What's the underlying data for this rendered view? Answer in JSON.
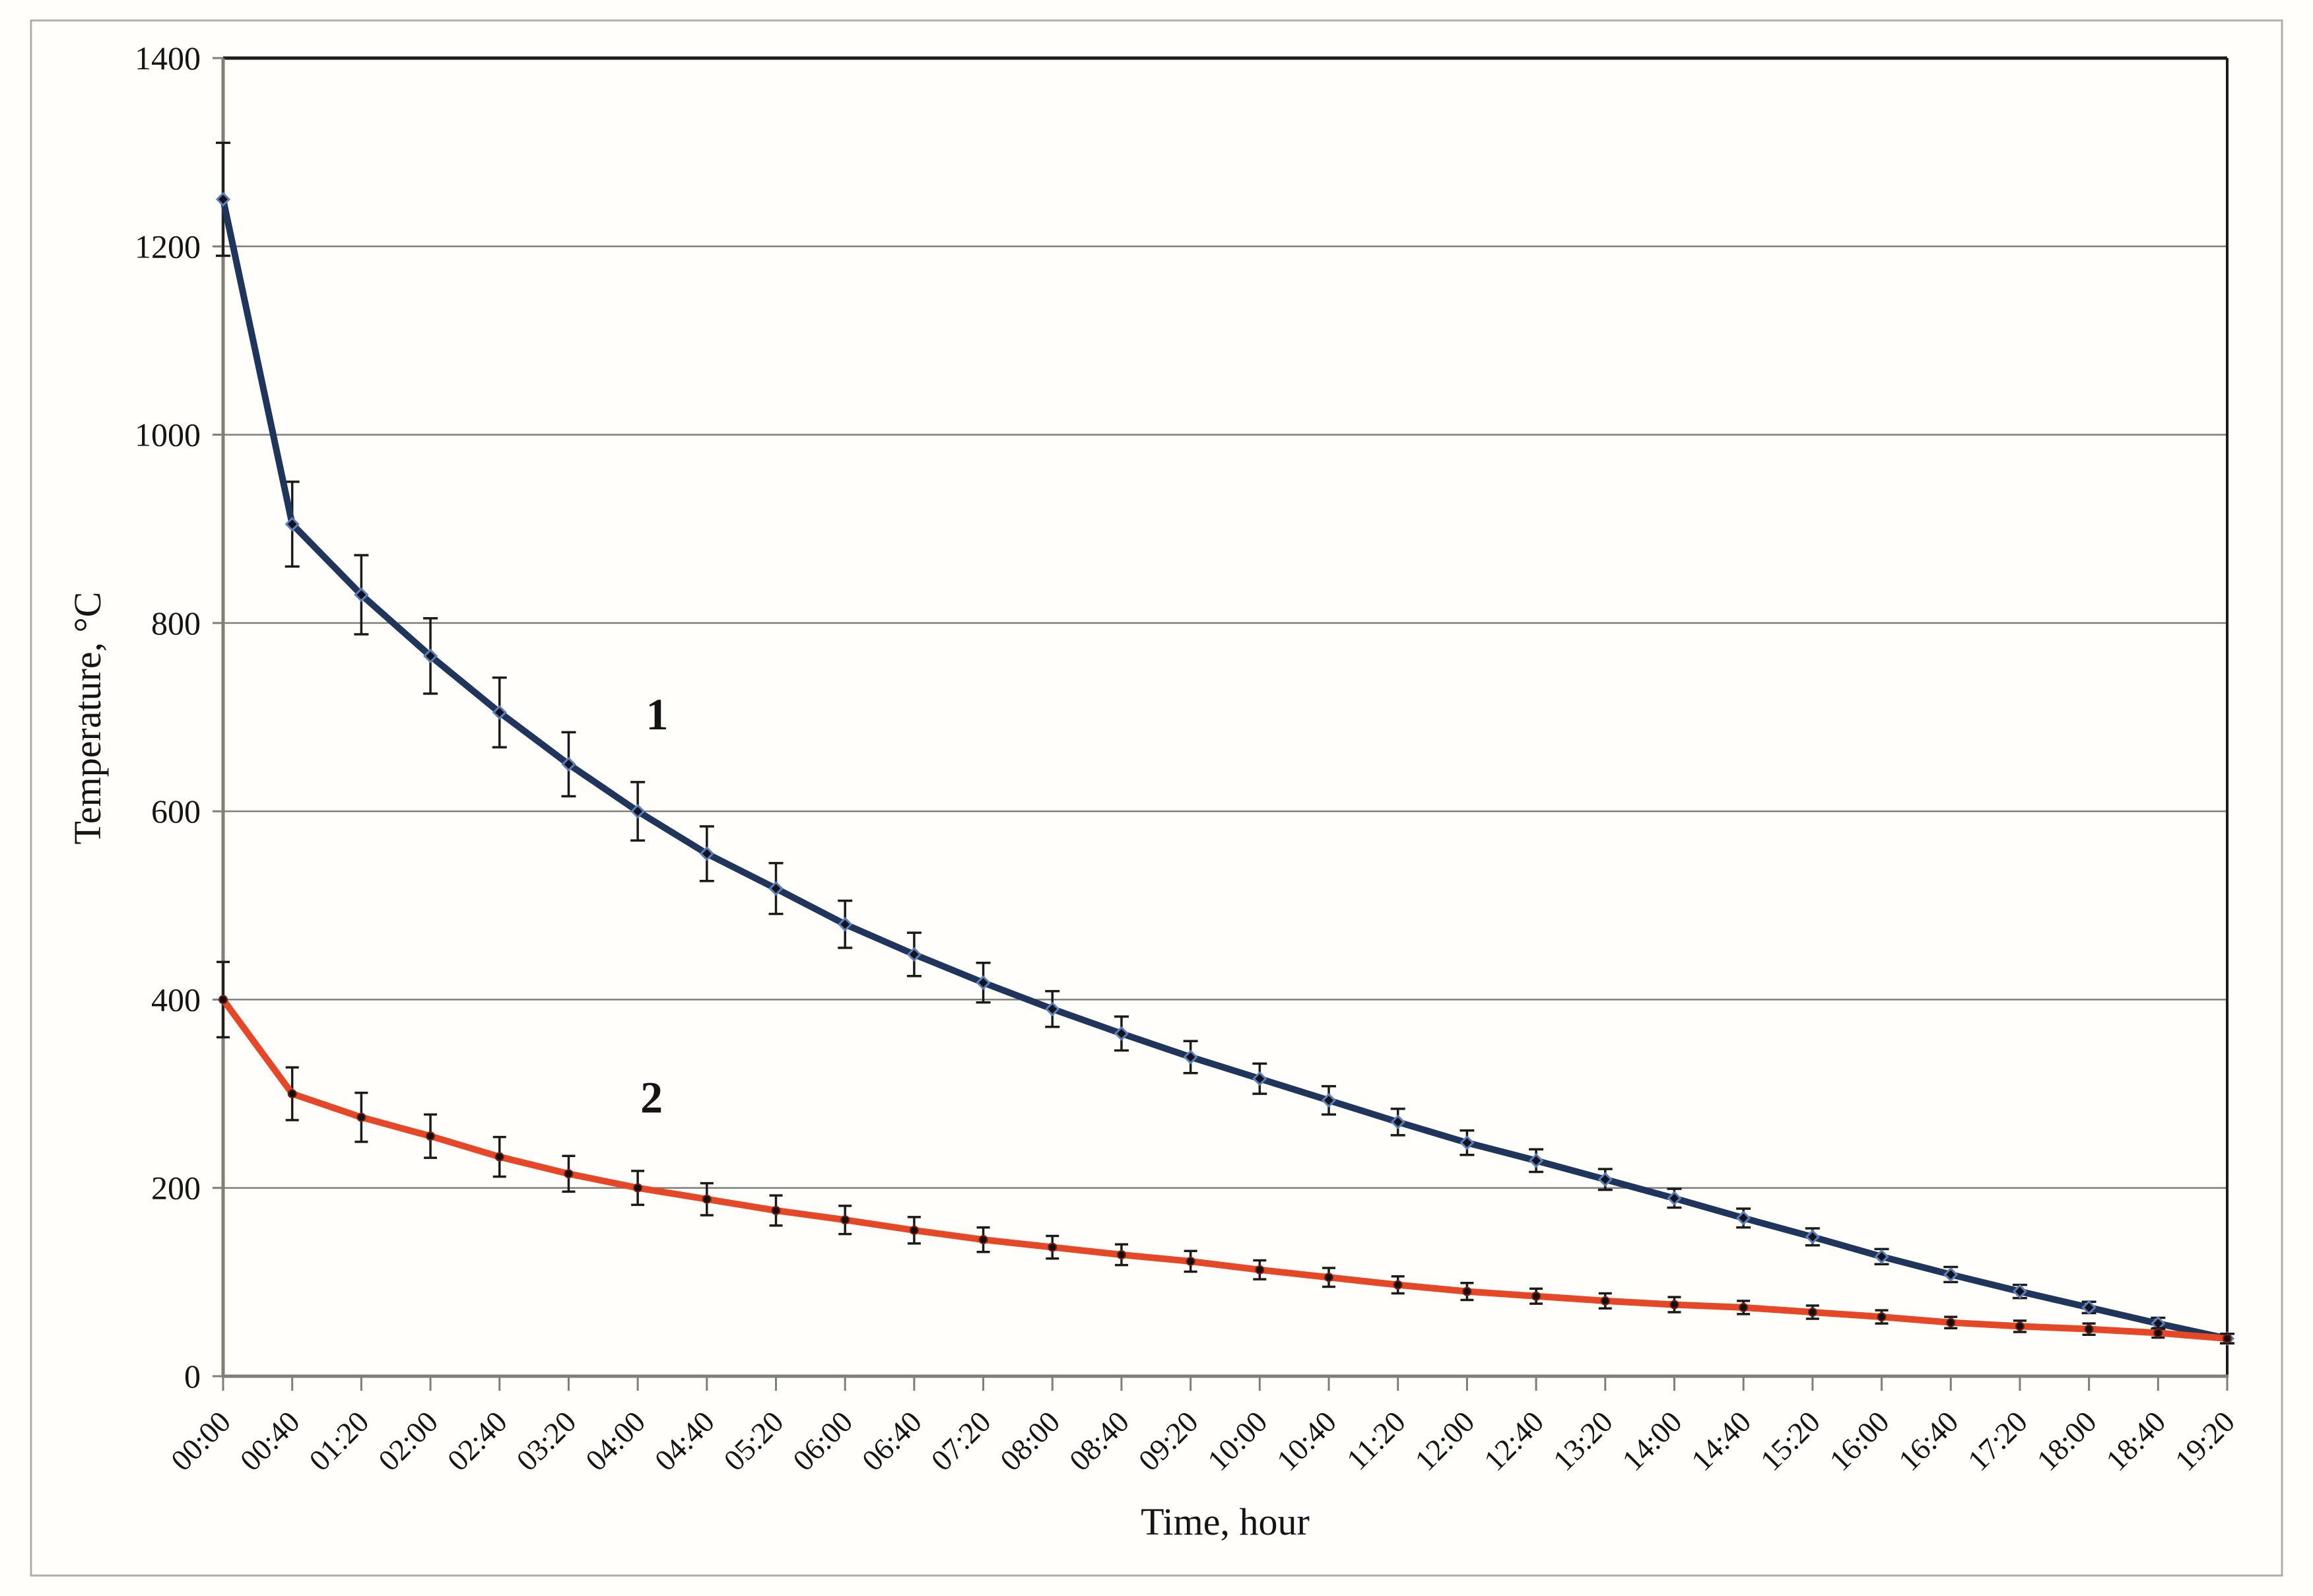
{
  "chart_data": {
    "type": "line",
    "title": "",
    "xlabel": "Time, hour",
    "ylabel": "Temperature, °C",
    "ylim": [
      0,
      1400
    ],
    "ytick_interval": 200,
    "y_ticks": [
      "0",
      "200",
      "400",
      "600",
      "800",
      "1000",
      "1200",
      "1400"
    ],
    "grid": "horizontal-only",
    "legend_position": "none",
    "x_tick_rotation": -45,
    "categories": [
      "00:00",
      "00:40",
      "01:20",
      "02:00",
      "02:40",
      "03:20",
      "04:00",
      "04:40",
      "05:20",
      "06:00",
      "06:40",
      "07:20",
      "08:00",
      "08:40",
      "09:20",
      "10:00",
      "10:40",
      "11:20",
      "12:00",
      "12:40",
      "13:20",
      "14:00",
      "14:40",
      "15:20",
      "16:00",
      "16:40",
      "17:20",
      "18:00",
      "18:40",
      "19:20"
    ],
    "series": [
      {
        "name": "1",
        "color": "#20355c",
        "marker": "diamond",
        "marker_stroke": "#5b7fbb",
        "values": [
          1250,
          905,
          830,
          765,
          705,
          650,
          600,
          555,
          518,
          480,
          448,
          418,
          390,
          364,
          339,
          316,
          293,
          270,
          248,
          229,
          209,
          189,
          168,
          148,
          127,
          108,
          90,
          73,
          56,
          40
        ],
        "errors": [
          60,
          45,
          42,
          40,
          37,
          34,
          31,
          29,
          27,
          25,
          23,
          21,
          19,
          18,
          17,
          16,
          15,
          14,
          13,
          12,
          11,
          10,
          10,
          9,
          8,
          8,
          7,
          6,
          6,
          5
        ]
      },
      {
        "name": "2",
        "color": "#e64827",
        "marker": "dot",
        "marker_stroke": "#7c1f0e",
        "values": [
          400,
          300,
          275,
          255,
          233,
          215,
          200,
          188,
          176,
          166,
          155,
          145,
          137,
          129,
          122,
          113,
          105,
          97,
          90,
          85,
          80,
          76,
          73,
          68,
          63,
          57,
          53,
          50,
          46,
          40
        ],
        "errors": [
          40,
          28,
          26,
          23,
          21,
          19,
          18,
          17,
          16,
          15,
          14,
          13,
          12,
          11,
          11,
          10,
          10,
          9,
          9,
          8,
          8,
          8,
          7,
          7,
          7,
          6,
          6,
          6,
          5,
          5
        ]
      }
    ],
    "annotations": [
      {
        "text": "1",
        "x_index": 6.28,
        "y_value": 687
      },
      {
        "text": "2",
        "x_index": 6.2,
        "y_value": 280
      }
    ],
    "colors": {
      "background": "#fffefb",
      "gridline": "#7f7f78",
      "axis_gray": "#7f7f78",
      "frame_dark": "#1c1c1c",
      "error_bar": "#1a1a1a",
      "outer_border": "#b2ada8",
      "text": "#141414"
    }
  }
}
